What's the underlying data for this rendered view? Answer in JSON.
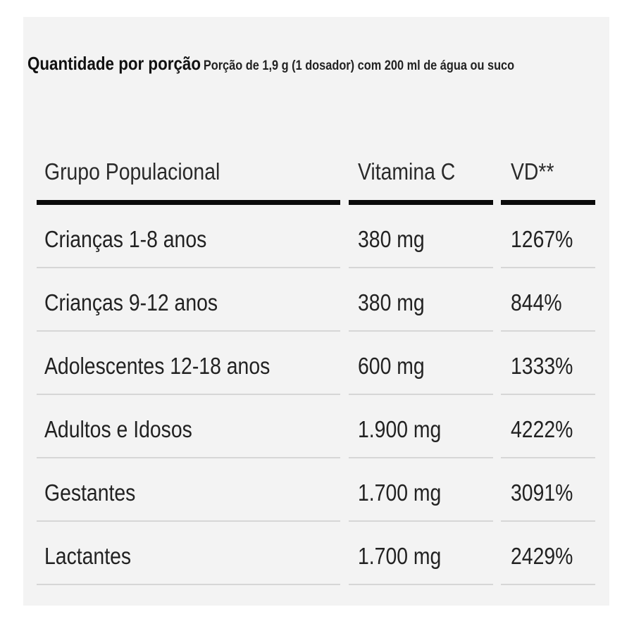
{
  "header": {
    "title": "Quantidade por porção",
    "subtitle": "Porção de 1,9 g (1 dosador) com 200 ml de água ou suco"
  },
  "table": {
    "columns": [
      "Grupo Populacional",
      "Vitamina C",
      "VD**"
    ],
    "rows": [
      [
        "Crianças 1-8 anos",
        "380 mg",
        "1267%"
      ],
      [
        "Crianças 9-12 anos",
        "380 mg",
        "844%"
      ],
      [
        "Adolescentes 12-18 anos",
        "600 mg",
        "1333%"
      ],
      [
        "Adultos e Idosos",
        "1.900 mg",
        "4222%"
      ],
      [
        "Gestantes",
        "1.700 mg",
        "3091%"
      ],
      [
        "Lactantes",
        "1.700 mg",
        "2429%"
      ]
    ]
  }
}
